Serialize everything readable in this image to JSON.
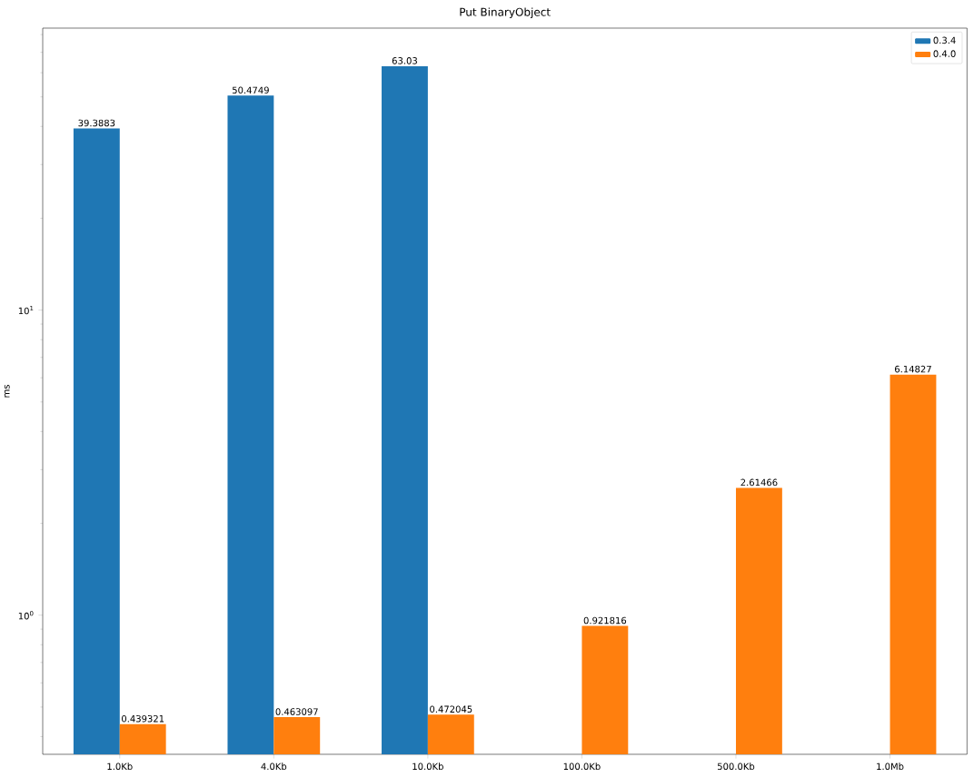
{
  "chart_data": {
    "type": "bar",
    "title": "Put BinaryObject",
    "ylabel": "ms",
    "categories": [
      "1.0Kb",
      "4.0Kb",
      "10.0Kb",
      "100.0Kb",
      "500.0Kb",
      "1.0Mb"
    ],
    "series": [
      {
        "name": "0.3.4",
        "color": "#1f77b4",
        "values": [
          39.3883,
          50.4749,
          63.03,
          null,
          null,
          null
        ]
      },
      {
        "name": "0.4.0",
        "color": "#ff7f0e",
        "values": [
          0.439321,
          0.463097,
          0.472045,
          0.921816,
          2.61466,
          6.14827
        ]
      }
    ],
    "log": "y",
    "ylim": [
      0.35,
      84
    ],
    "yticks": [
      {
        "value": 0.4,
        "label": null
      },
      {
        "value": 0.5,
        "label": null
      },
      {
        "value": 0.6,
        "label": null
      },
      {
        "value": 0.7,
        "label": null
      },
      {
        "value": 0.8,
        "label": null
      },
      {
        "value": 0.9,
        "label": null
      },
      {
        "value": 1,
        "label": "10$^{0}$"
      },
      {
        "value": 2,
        "label": null
      },
      {
        "value": 3,
        "label": null
      },
      {
        "value": 4,
        "label": null
      },
      {
        "value": 5,
        "label": null
      },
      {
        "value": 6,
        "label": null
      },
      {
        "value": 7,
        "label": null
      },
      {
        "value": 8,
        "label": null
      },
      {
        "value": 9,
        "label": null
      },
      {
        "value": 10,
        "label": "10$^{1}$"
      },
      {
        "value": 20,
        "label": null
      },
      {
        "value": 30,
        "label": null
      },
      {
        "value": 40,
        "label": null
      },
      {
        "value": 50,
        "label": null
      },
      {
        "value": 60,
        "label": null
      },
      {
        "value": 70,
        "label": null
      },
      {
        "value": 80,
        "label": null
      }
    ],
    "data_labels": true,
    "legend": "top right",
    "grid": false
  }
}
